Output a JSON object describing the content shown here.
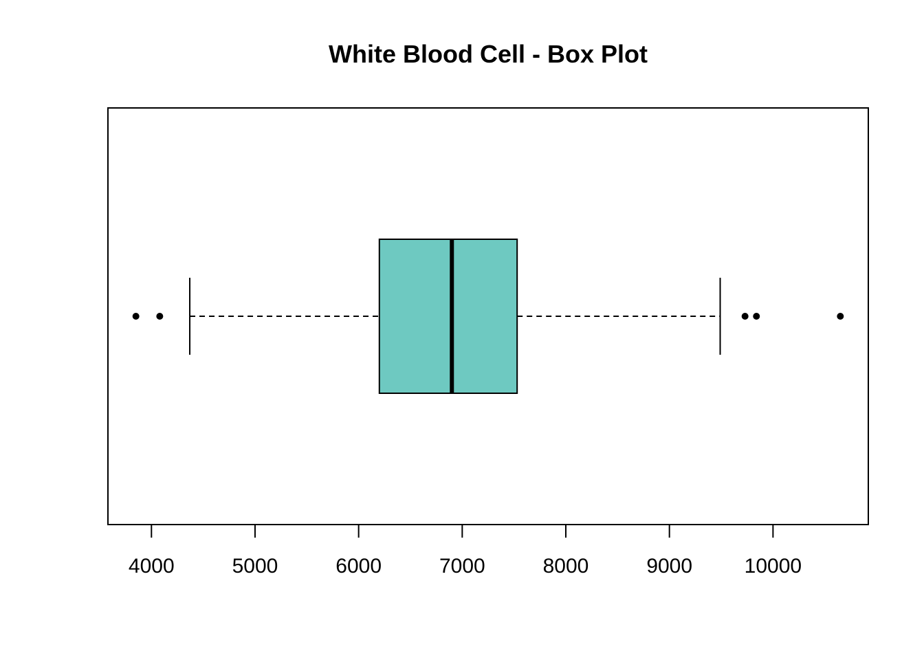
{
  "chart_data": {
    "type": "boxplot",
    "orientation": "horizontal",
    "title": "White Blood Cell - Box Plot",
    "xlabel": "",
    "ylabel": "",
    "xlim": [
      3580,
      10920
    ],
    "ticks": [
      4000,
      5000,
      6000,
      7000,
      8000,
      9000,
      10000
    ],
    "tick_labels": [
      "4000",
      "5000",
      "6000",
      "7000",
      "8000",
      "9000",
      "10000"
    ],
    "grid": false,
    "box": {
      "whisker_low": 4370,
      "q1": 6200,
      "median": 6900,
      "q3": 7530,
      "whisker_high": 9490
    },
    "outliers": [
      3850,
      4080,
      9730,
      9840,
      10650
    ],
    "colors": {
      "box_fill": "#6EC9C1",
      "stroke": "#000000"
    }
  }
}
